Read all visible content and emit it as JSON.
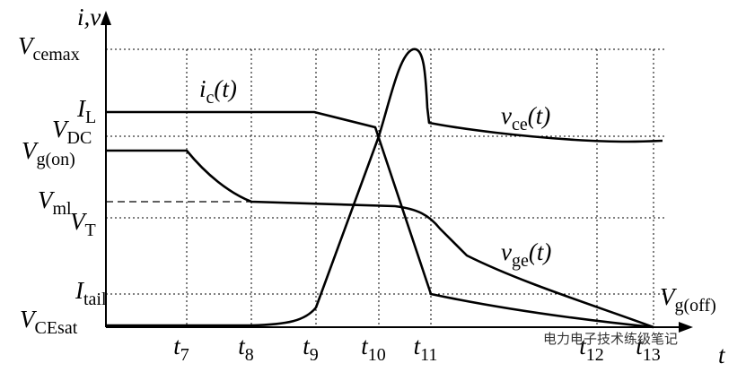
{
  "axis_label": "i,v",
  "x_axis_label": "t",
  "levels": [
    {
      "main": "V",
      "sub": "cemax"
    },
    {
      "main": "I",
      "sub": "L"
    },
    {
      "main": "V",
      "sub": "DC"
    },
    {
      "main": "V",
      "sub": "g(on)"
    },
    {
      "main": "V",
      "sub": "ml"
    },
    {
      "main": "V",
      "sub": "T"
    },
    {
      "main": "I",
      "sub": "tail"
    },
    {
      "main": "V",
      "sub": "CEsat"
    }
  ],
  "times": [
    {
      "main": "t",
      "sub": "7"
    },
    {
      "main": "t",
      "sub": "8"
    },
    {
      "main": "t",
      "sub": "9"
    },
    {
      "main": "t",
      "sub": "10"
    },
    {
      "main": "t",
      "sub": "11"
    },
    {
      "main": "t",
      "sub": "12"
    },
    {
      "main": "t",
      "sub": "13"
    }
  ],
  "curve_labels": [
    {
      "main": "i",
      "sub": "c",
      "tail": "(t)"
    },
    {
      "main": "v",
      "sub": "ce",
      "tail": "(t)"
    },
    {
      "main": "v",
      "sub": "ge",
      "tail": "(t)"
    },
    {
      "main": "V",
      "sub": "g(off)"
    }
  ],
  "watermark": "电力电子技术练级笔记"
}
